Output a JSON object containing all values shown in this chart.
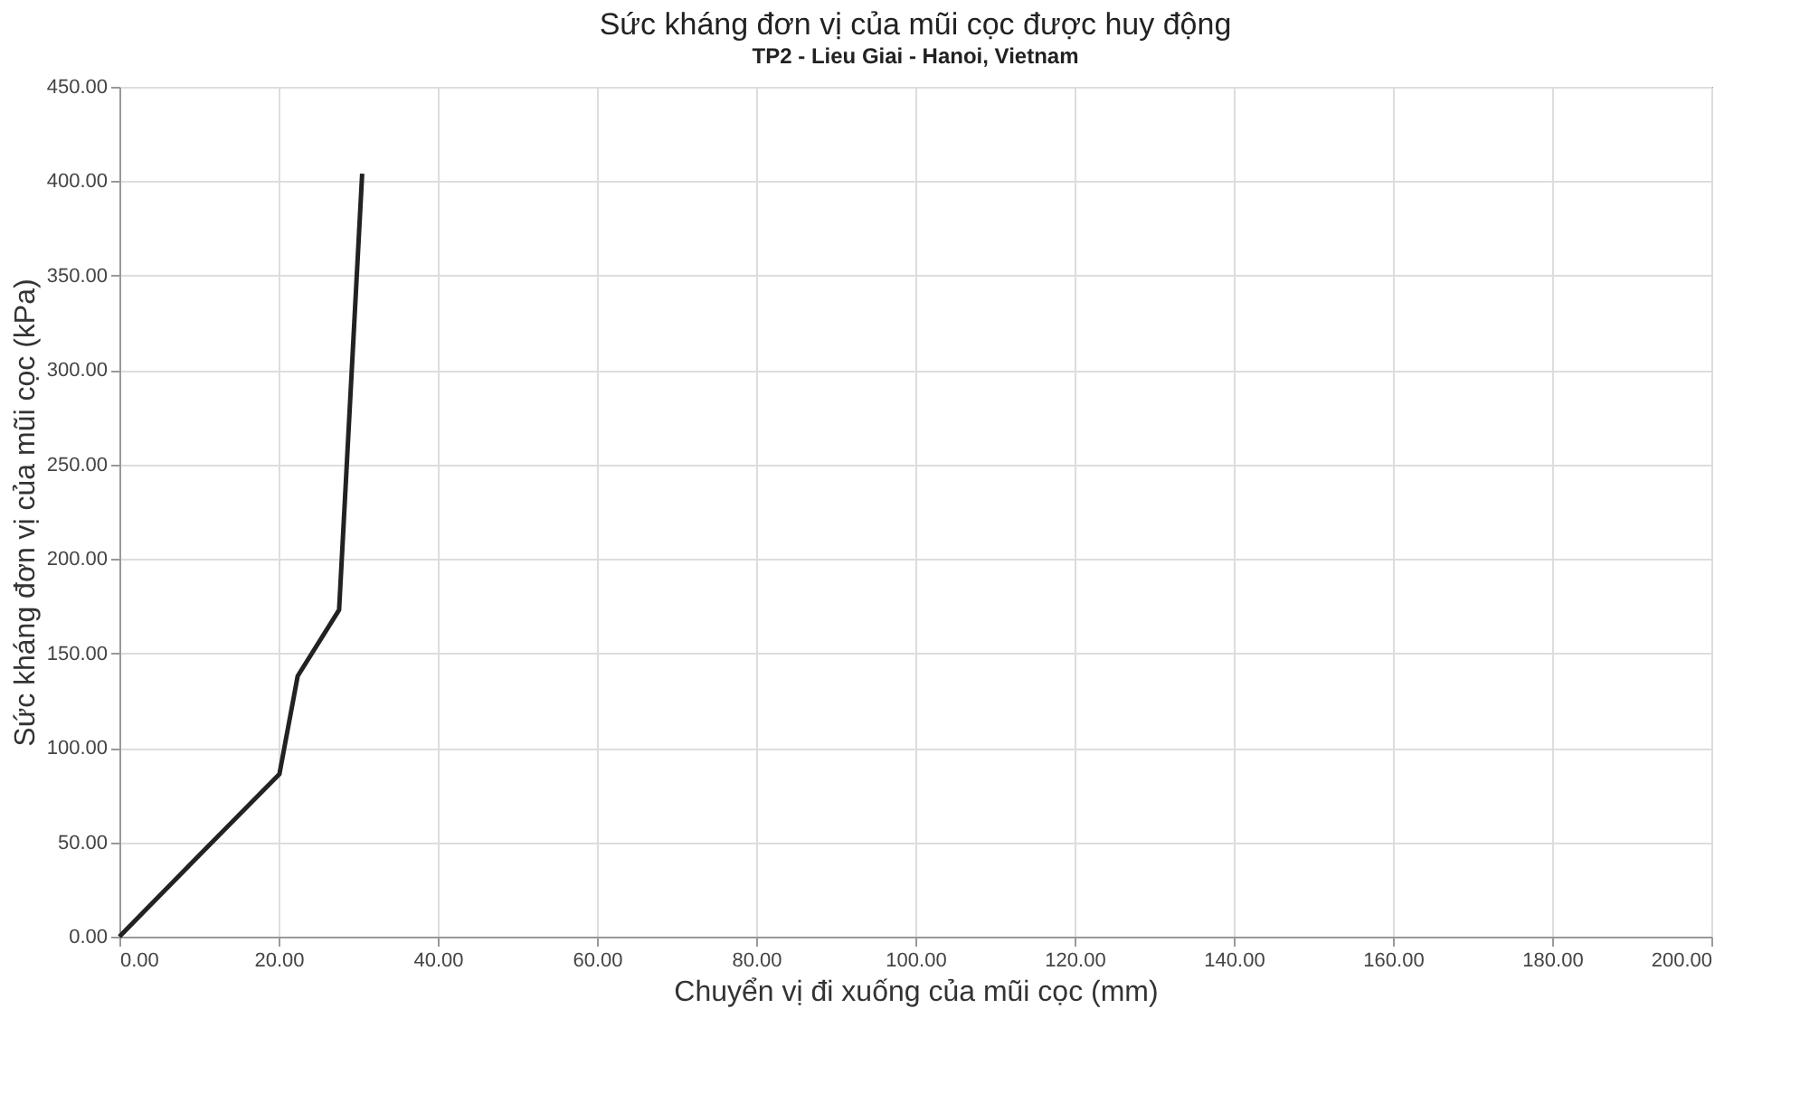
{
  "chart_data": {
    "type": "line",
    "title": "Sức kháng đơn vị của mũi cọc được huy động",
    "subtitle": "TP2 - Lieu Giai - Hanoi, Vietnam",
    "xlabel": "Chuyển vị đi xuống của mũi cọc (mm)",
    "ylabel": "Sức kháng đơn vị của mũi cọc (kPa)",
    "x": [
      0,
      10,
      20.1,
      22.4,
      27.6,
      30.5
    ],
    "series": [
      {
        "color": "#222222",
        "values": [
          0,
          43,
          86,
          138,
          173,
          404
        ]
      }
    ],
    "xlim": [
      0,
      200
    ],
    "ylim": [
      0,
      450
    ],
    "xticks": [
      {
        "value": 0,
        "label": "0.00"
      },
      {
        "value": 20,
        "label": "20.00"
      },
      {
        "value": 40,
        "label": "40.00"
      },
      {
        "value": 60,
        "label": "60.00"
      },
      {
        "value": 80,
        "label": "80.00"
      },
      {
        "value": 100,
        "label": "100.00"
      },
      {
        "value": 120,
        "label": "120.00"
      },
      {
        "value": 140,
        "label": "140.00"
      },
      {
        "value": 160,
        "label": "160.00"
      },
      {
        "value": 180,
        "label": "180.00"
      },
      {
        "value": 200,
        "label": "200.00"
      }
    ],
    "yticks": [
      {
        "value": 0,
        "label": "0.00"
      },
      {
        "value": 50,
        "label": "50.00"
      },
      {
        "value": 100,
        "label": "100.00"
      },
      {
        "value": 150,
        "label": "150.00"
      },
      {
        "value": 200,
        "label": "200.00"
      },
      {
        "value": 250,
        "label": "250.00"
      },
      {
        "value": 300,
        "label": "300.00"
      },
      {
        "value": 350,
        "label": "350.00"
      },
      {
        "value": 400,
        "label": "400.00"
      },
      {
        "value": 450,
        "label": "450.00"
      }
    ],
    "grid": true,
    "marker": "none",
    "line_style": "solid"
  }
}
